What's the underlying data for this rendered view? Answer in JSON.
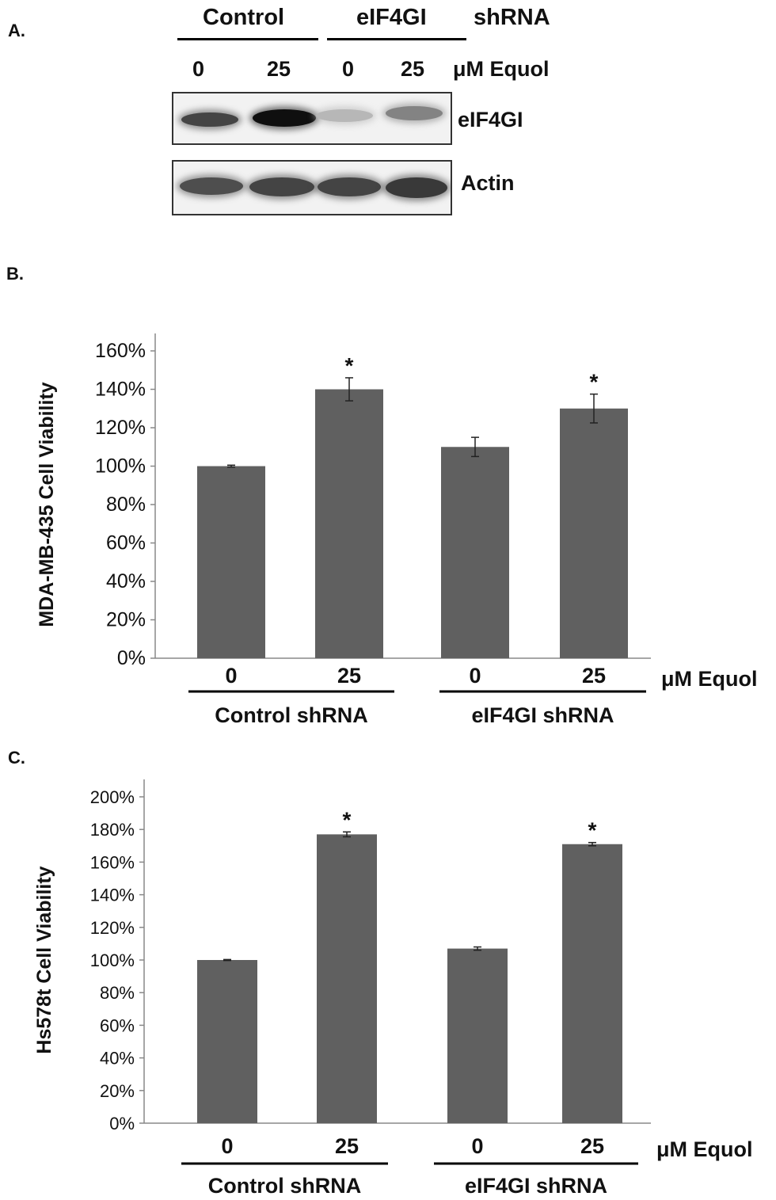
{
  "panel_a": {
    "label": "A.",
    "groups": [
      {
        "name": "Control"
      },
      {
        "name": "eIF4GI"
      }
    ],
    "suffix": "shRNA",
    "lanes": [
      "0",
      "25",
      "0",
      "25"
    ],
    "lane_unit": "μM Equol",
    "blots": [
      {
        "name": "eIF4GI",
        "intensity": [
          0.75,
          1.0,
          0.2,
          0.45
        ]
      },
      {
        "name": "Actin",
        "intensity": [
          0.7,
          0.75,
          0.75,
          0.8
        ]
      }
    ]
  },
  "chart_data": [
    {
      "type": "bar",
      "panel_label": "B.",
      "ylabel": "MDA-MB-435 Cell Viability",
      "categories": [
        "0",
        "25",
        "0",
        "25"
      ],
      "values": [
        100,
        140,
        110,
        130
      ],
      "errors": [
        0.5,
        6,
        5,
        7.5
      ],
      "significance": [
        "",
        "*",
        "",
        "*"
      ],
      "group_labels": [
        "Control shRNA",
        "eIF4GI shRNA"
      ],
      "x_unit": "μM Equol",
      "ylim": [
        0,
        160
      ],
      "yticks": [
        "0%",
        "20%",
        "40%",
        "60%",
        "80%",
        "100%",
        "120%",
        "140%",
        "160%"
      ],
      "bar_color": "#606060"
    },
    {
      "type": "bar",
      "panel_label": "C.",
      "ylabel": "Hs578t Cell Viability",
      "categories": [
        "0",
        "25",
        "0",
        "25"
      ],
      "values": [
        100,
        177,
        107,
        171
      ],
      "errors": [
        0.3,
        1.5,
        1,
        1
      ],
      "significance": [
        "",
        "*",
        "",
        "*"
      ],
      "group_labels": [
        "Control shRNA",
        "eIF4GI shRNA"
      ],
      "x_unit": "μM Equol",
      "ylim": [
        0,
        200
      ],
      "yticks": [
        "0%",
        "20%",
        "40%",
        "60%",
        "80%",
        "100%",
        "120%",
        "140%",
        "160%",
        "180%",
        "200%"
      ],
      "bar_color": "#606060"
    }
  ]
}
